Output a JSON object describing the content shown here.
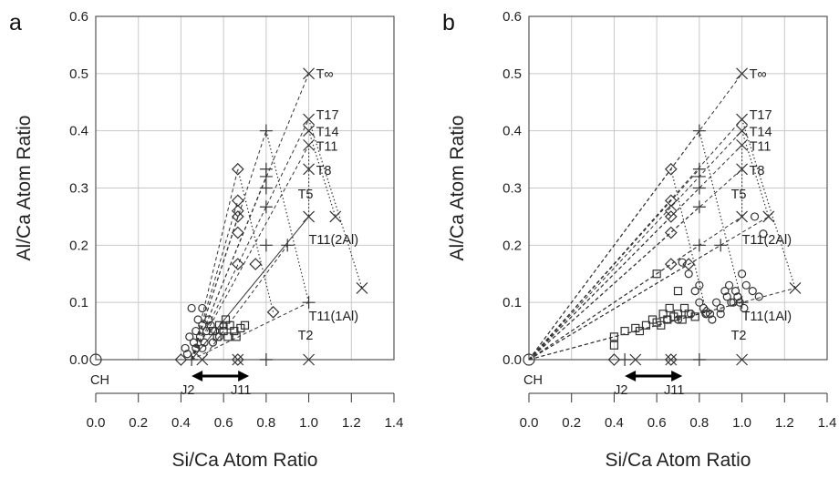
{
  "chart_data": [
    {
      "panel": "a",
      "type": "scatter",
      "xlabel": "Si/Ca Atom Ratio",
      "ylabel": "Al/Ca Atom Ratio",
      "xlim": [
        0.0,
        1.4
      ],
      "ylim": [
        0.0,
        0.6
      ],
      "xticks": [
        "0.0",
        "0.2",
        "0.4",
        "0.6",
        "0.8",
        "1.0",
        "1.2",
        "1.4"
      ],
      "yticks": [
        "0.0",
        "0.1",
        "0.2",
        "0.3",
        "0.4",
        "0.5",
        "0.6"
      ],
      "grid": true,
      "model_points_x": [
        [
          1.0,
          0.5
        ],
        [
          1.0,
          0.42
        ],
        [
          1.0,
          0.4
        ],
        [
          1.0,
          0.375
        ],
        [
          1.0,
          0.333
        ],
        [
          1.0,
          0.25
        ],
        [
          1.125,
          0.25
        ],
        [
          1.25,
          0.125
        ],
        [
          1.0,
          0.0
        ],
        [
          0.667,
          0.0
        ],
        [
          0.5,
          0.0
        ]
      ],
      "model_points_plus": [
        [
          0.8,
          0.4
        ],
        [
          0.8,
          0.333
        ],
        [
          0.8,
          0.32
        ],
        [
          0.8,
          0.3
        ],
        [
          0.8,
          0.267
        ],
        [
          0.8,
          0.2
        ],
        [
          0.9,
          0.2
        ],
        [
          1.0,
          0.1
        ],
        [
          0.8,
          0.0
        ],
        [
          0.45,
          0.0
        ]
      ],
      "model_points_diamond": [
        [
          0.667,
          0.333
        ],
        [
          0.667,
          0.278
        ],
        [
          0.667,
          0.26
        ],
        [
          0.667,
          0.25
        ],
        [
          0.667,
          0.222
        ],
        [
          0.667,
          0.167
        ],
        [
          0.75,
          0.167
        ],
        [
          0.833,
          0.083
        ],
        [
          0.667,
          0.0
        ],
        [
          0.4,
          0.0
        ]
      ],
      "measured_circles": [
        [
          0.45,
          0.09
        ],
        [
          0.5,
          0.09
        ],
        [
          0.42,
          0.02
        ],
        [
          0.44,
          0.04
        ],
        [
          0.47,
          0.05
        ],
        [
          0.48,
          0.07
        ],
        [
          0.5,
          0.06
        ],
        [
          0.52,
          0.05
        ],
        [
          0.54,
          0.06
        ],
        [
          0.46,
          0.03
        ],
        [
          0.49,
          0.04
        ],
        [
          0.51,
          0.03
        ],
        [
          0.53,
          0.07
        ],
        [
          0.56,
          0.05
        ],
        [
          0.58,
          0.04
        ],
        [
          0.6,
          0.06
        ],
        [
          0.47,
          0.02
        ],
        [
          0.55,
          0.03
        ],
        [
          0.43,
          0.01
        ],
        [
          0.5,
          0.02
        ]
      ],
      "measured_squares": [
        [
          0.55,
          0.05
        ],
        [
          0.58,
          0.06
        ],
        [
          0.6,
          0.05
        ],
        [
          0.62,
          0.04
        ],
        [
          0.63,
          0.06
        ],
        [
          0.65,
          0.05
        ],
        [
          0.66,
          0.04
        ],
        [
          0.68,
          0.055
        ],
        [
          0.7,
          0.06
        ],
        [
          0.57,
          0.04
        ],
        [
          0.61,
          0.07
        ]
      ],
      "ch_point": [
        0.0,
        0.0
      ],
      "annotations": {
        "tinf": "T∞",
        "t17": "T17",
        "t14": "T14",
        "t11": "T11",
        "t8": "T8",
        "t5": "T5",
        "t11_2al": "T11(2Al)",
        "t11_1al": "T11(1Al)",
        "t2": "T2",
        "ch": "CH",
        "j2": "J2",
        "j11": "J11"
      }
    },
    {
      "panel": "b",
      "type": "scatter",
      "xlabel": "Si/Ca Atom Ratio",
      "ylabel": "Al/Ca Atom Ratio",
      "xlim": [
        0.0,
        1.4
      ],
      "ylim": [
        0.0,
        0.6
      ],
      "xticks": [
        "0.0",
        "0.2",
        "0.4",
        "0.6",
        "0.8",
        "1.0",
        "1.2",
        "1.4"
      ],
      "yticks": [
        "0.0",
        "0.1",
        "0.2",
        "0.3",
        "0.4",
        "0.5",
        "0.6"
      ],
      "grid": true,
      "model_points_x": [
        [
          1.0,
          0.5
        ],
        [
          1.0,
          0.42
        ],
        [
          1.0,
          0.4
        ],
        [
          1.0,
          0.375
        ],
        [
          1.0,
          0.333
        ],
        [
          1.0,
          0.25
        ],
        [
          1.125,
          0.25
        ],
        [
          1.25,
          0.125
        ],
        [
          1.0,
          0.0
        ],
        [
          0.667,
          0.0
        ],
        [
          0.5,
          0.0
        ]
      ],
      "model_points_plus": [
        [
          0.8,
          0.4
        ],
        [
          0.8,
          0.333
        ],
        [
          0.8,
          0.32
        ],
        [
          0.8,
          0.3
        ],
        [
          0.8,
          0.267
        ],
        [
          0.8,
          0.2
        ],
        [
          0.9,
          0.2
        ],
        [
          1.0,
          0.1
        ],
        [
          0.8,
          0.0
        ],
        [
          0.45,
          0.0
        ]
      ],
      "model_points_diamond": [
        [
          0.667,
          0.333
        ],
        [
          0.667,
          0.278
        ],
        [
          0.667,
          0.26
        ],
        [
          0.667,
          0.25
        ],
        [
          0.667,
          0.222
        ],
        [
          0.667,
          0.167
        ],
        [
          0.75,
          0.167
        ],
        [
          0.833,
          0.083
        ],
        [
          0.667,
          0.0
        ],
        [
          0.4,
          0.0
        ]
      ],
      "measured_circles": [
        [
          0.72,
          0.17
        ],
        [
          0.75,
          0.15
        ],
        [
          0.78,
          0.12
        ],
        [
          0.8,
          0.1
        ],
        [
          0.82,
          0.09
        ],
        [
          0.85,
          0.08
        ],
        [
          0.88,
          0.1
        ],
        [
          0.9,
          0.09
        ],
        [
          0.92,
          0.12
        ],
        [
          0.95,
          0.1
        ],
        [
          0.97,
          0.12
        ],
        [
          1.0,
          0.15
        ],
        [
          1.02,
          0.13
        ],
        [
          1.05,
          0.12
        ],
        [
          1.08,
          0.11
        ],
        [
          1.1,
          0.22
        ],
        [
          1.06,
          0.25
        ],
        [
          0.98,
          0.11
        ],
        [
          0.93,
          0.11
        ],
        [
          0.86,
          0.07
        ],
        [
          0.83,
          0.08
        ],
        [
          0.9,
          0.08
        ],
        [
          0.96,
          0.1
        ],
        [
          0.99,
          0.1
        ],
        [
          1.01,
          0.09
        ],
        [
          0.76,
          0.08
        ],
        [
          0.7,
          0.07
        ],
        [
          0.65,
          0.07
        ],
        [
          0.8,
          0.13
        ],
        [
          0.94,
          0.13
        ]
      ],
      "measured_squares": [
        [
          0.4,
          0.04
        ],
        [
          0.4,
          0.025
        ],
        [
          0.45,
          0.05
        ],
        [
          0.5,
          0.055
        ],
        [
          0.55,
          0.06
        ],
        [
          0.6,
          0.065
        ],
        [
          0.62,
          0.06
        ],
        [
          0.65,
          0.07
        ],
        [
          0.68,
          0.075
        ],
        [
          0.7,
          0.08
        ],
        [
          0.72,
          0.07
        ],
        [
          0.75,
          0.08
        ],
        [
          0.78,
          0.075
        ],
        [
          0.6,
          0.15
        ],
        [
          0.7,
          0.12
        ],
        [
          0.52,
          0.05
        ],
        [
          0.58,
          0.07
        ],
        [
          0.66,
          0.09
        ],
        [
          0.63,
          0.08
        ],
        [
          0.73,
          0.09
        ]
      ],
      "ch_point": [
        0.0,
        0.0
      ],
      "annotations": {
        "tinf": "T∞",
        "t17": "T17",
        "t14": "T14",
        "t11": "T11",
        "t8": "T8",
        "t5": "T5",
        "t11_2al": "T11(2Al)",
        "t11_1al": "T11(1Al)",
        "t2": "T2",
        "ch": "CH",
        "j2": "J2",
        "j11": "J11"
      }
    }
  ]
}
